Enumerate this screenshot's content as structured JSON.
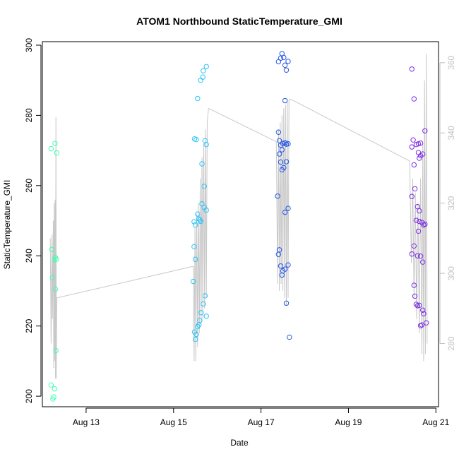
{
  "chart_data": {
    "type": "scatter",
    "title": "ATOM1 Northbound StaticTemperature_GMI",
    "xlabel": "Date",
    "ylabel": "StaticTemperature_GMI",
    "x_ticks": [
      {
        "x": 13,
        "label": "Aug 13"
      },
      {
        "x": 15,
        "label": "Aug 15"
      },
      {
        "x": 17,
        "label": "Aug 17"
      },
      {
        "x": 19,
        "label": "Aug 19"
      },
      {
        "x": 21,
        "label": "Aug 21"
      }
    ],
    "xlim": [
      12.0,
      21.06
    ],
    "ylim": [
      197.0,
      301.0
    ],
    "y_ticks": [
      200,
      220,
      240,
      260,
      280,
      300
    ],
    "y2lim": [
      262.0,
      366.0
    ],
    "y2_ticks": [
      280,
      300,
      320,
      340,
      360
    ],
    "grid": false,
    "legend": "none",
    "line_color": "#c8c8c8",
    "series": [
      {
        "color": "#3fffb0",
        "points": [
          [
            12.2,
            270.5
          ],
          [
            12.22,
            241.8
          ],
          [
            12.23,
            233.8
          ],
          [
            12.2,
            203.2
          ],
          [
            12.24,
            199.2
          ],
          [
            12.26,
            199.8
          ],
          [
            12.28,
            202.1
          ],
          [
            12.27,
            238.9
          ],
          [
            12.3,
            239.5
          ],
          [
            12.32,
            239.0
          ],
          [
            12.29,
            272.0
          ],
          [
            12.33,
            269.3
          ],
          [
            12.3,
            230.5
          ],
          [
            12.31,
            213.0
          ]
        ],
        "line": [
          [
            12.18,
            245.0
          ],
          [
            12.2,
            215.0
          ],
          [
            12.22,
            246.0
          ],
          [
            12.23,
            222.0
          ],
          [
            12.25,
            250.0
          ],
          [
            12.26,
            208.0
          ],
          [
            12.27,
            255.0
          ],
          [
            12.28,
            210.0
          ],
          [
            12.29,
            256.0
          ],
          [
            12.3,
            205.0
          ],
          [
            12.31,
            279.5
          ],
          [
            12.32,
            205.0
          ],
          [
            12.33,
            228.0
          ]
        ]
      },
      {
        "color": "#29c3f6",
        "points": [
          [
            15.45,
            232.7
          ],
          [
            15.48,
            218.3
          ],
          [
            15.5,
            216.2
          ],
          [
            15.52,
            217.6
          ],
          [
            15.55,
            219.8
          ],
          [
            15.58,
            220.3
          ],
          [
            15.6,
            221.6
          ],
          [
            15.63,
            223.8
          ],
          [
            15.68,
            226.3
          ],
          [
            15.72,
            228.6
          ],
          [
            15.75,
            222.8
          ],
          [
            15.47,
            242.6
          ],
          [
            15.5,
            239.0
          ],
          [
            15.47,
            249.7
          ],
          [
            15.5,
            248.8
          ],
          [
            15.55,
            251.9
          ],
          [
            15.6,
            250.2
          ],
          [
            15.65,
            254.8
          ],
          [
            15.7,
            253.8
          ],
          [
            15.75,
            253.0
          ],
          [
            15.58,
            250.5
          ],
          [
            15.62,
            249.8
          ],
          [
            15.65,
            266.2
          ],
          [
            15.7,
            259.8
          ],
          [
            15.72,
            272.8
          ],
          [
            15.75,
            271.7
          ],
          [
            15.48,
            273.3
          ],
          [
            15.52,
            273.1
          ],
          [
            15.55,
            284.8
          ],
          [
            15.62,
            290.0
          ],
          [
            15.67,
            290.9
          ],
          [
            15.68,
            292.7
          ],
          [
            15.75,
            293.9
          ]
        ],
        "line": [
          [
            15.45,
            237.0
          ],
          [
            15.47,
            210.0
          ],
          [
            15.49,
            248.0
          ],
          [
            15.51,
            210.0
          ],
          [
            15.53,
            252.0
          ],
          [
            15.55,
            214.0
          ],
          [
            15.57,
            255.0
          ],
          [
            15.59,
            218.0
          ],
          [
            15.61,
            262.0
          ],
          [
            15.63,
            220.0
          ],
          [
            15.65,
            268.0
          ],
          [
            15.67,
            222.0
          ],
          [
            15.69,
            272.0
          ],
          [
            15.71,
            225.0
          ],
          [
            15.73,
            276.0
          ],
          [
            15.75,
            228.0
          ],
          [
            15.77,
            278.0
          ],
          [
            15.8,
            282.0
          ]
        ]
      },
      {
        "color": "#2456e6",
        "points": [
          [
            17.38,
            257.0
          ],
          [
            17.4,
            240.4
          ],
          [
            17.42,
            241.7
          ],
          [
            17.45,
            237.1
          ],
          [
            17.48,
            234.5
          ],
          [
            17.5,
            235.7
          ],
          [
            17.55,
            236.2
          ],
          [
            17.58,
            226.5
          ],
          [
            17.62,
            237.4
          ],
          [
            17.65,
            216.8
          ],
          [
            17.4,
            275.2
          ],
          [
            17.42,
            272.8
          ],
          [
            17.45,
            271.5
          ],
          [
            17.48,
            270.2
          ],
          [
            17.5,
            272.0
          ],
          [
            17.55,
            272.2
          ],
          [
            17.58,
            271.8
          ],
          [
            17.62,
            271.9
          ],
          [
            17.42,
            269.0
          ],
          [
            17.45,
            266.7
          ],
          [
            17.48,
            264.5
          ],
          [
            17.52,
            265.1
          ],
          [
            17.58,
            266.8
          ],
          [
            17.55,
            252.4
          ],
          [
            17.62,
            253.5
          ],
          [
            17.4,
            295.3
          ],
          [
            17.45,
            296.3
          ],
          [
            17.48,
            297.6
          ],
          [
            17.52,
            296.5
          ],
          [
            17.55,
            294.3
          ],
          [
            17.58,
            292.9
          ],
          [
            17.62,
            295.4
          ],
          [
            17.55,
            284.2
          ]
        ],
        "line": [
          [
            17.35,
            272.5
          ],
          [
            17.38,
            232.0
          ],
          [
            17.4,
            276.0
          ],
          [
            17.42,
            230.0
          ],
          [
            17.44,
            278.0
          ],
          [
            17.46,
            232.0
          ],
          [
            17.48,
            280.0
          ],
          [
            17.5,
            230.0
          ],
          [
            17.52,
            282.0
          ],
          [
            17.54,
            228.0
          ],
          [
            17.56,
            283.0
          ],
          [
            17.58,
            226.0
          ],
          [
            17.6,
            284.0
          ],
          [
            17.62,
            228.0
          ],
          [
            17.64,
            284.5
          ],
          [
            17.7,
            284.5
          ]
        ]
      },
      {
        "color": "#7b2be3",
        "points": [
          [
            20.45,
            293.2
          ],
          [
            20.5,
            284.7
          ],
          [
            20.45,
            271.0
          ],
          [
            20.48,
            273.0
          ],
          [
            20.55,
            271.7
          ],
          [
            20.6,
            271.9
          ],
          [
            20.65,
            272.1
          ],
          [
            20.75,
            275.6
          ],
          [
            20.5,
            265.9
          ],
          [
            20.52,
            259.1
          ],
          [
            20.45,
            256.9
          ],
          [
            20.58,
            254.0
          ],
          [
            20.62,
            252.8
          ],
          [
            20.68,
            249.5
          ],
          [
            20.72,
            248.8
          ],
          [
            20.75,
            249.0
          ],
          [
            20.62,
            267.8
          ],
          [
            20.65,
            268.5
          ],
          [
            20.7,
            269.0
          ],
          [
            20.6,
            269.4
          ],
          [
            20.55,
            250.1
          ],
          [
            20.6,
            247.0
          ],
          [
            20.62,
            249.8
          ],
          [
            20.5,
            242.8
          ],
          [
            20.45,
            240.5
          ],
          [
            20.58,
            240.0
          ],
          [
            20.65,
            239.9
          ],
          [
            20.7,
            238.2
          ],
          [
            20.5,
            231.6
          ],
          [
            20.52,
            228.5
          ],
          [
            20.55,
            226.2
          ],
          [
            20.58,
            225.8
          ],
          [
            20.62,
            225.9
          ],
          [
            20.7,
            224.5
          ],
          [
            20.72,
            223.5
          ],
          [
            20.78,
            220.9
          ],
          [
            20.65,
            220.1
          ],
          [
            20.68,
            220.3
          ]
        ],
        "line": [
          [
            20.4,
            267.0
          ],
          [
            20.44,
            238.0
          ],
          [
            20.47,
            262.0
          ],
          [
            20.5,
            228.0
          ],
          [
            20.53,
            258.0
          ],
          [
            20.56,
            222.0
          ],
          [
            20.59,
            255.0
          ],
          [
            20.62,
            218.0
          ],
          [
            20.65,
            262.0
          ],
          [
            20.68,
            212.0
          ],
          [
            20.7,
            272.0
          ],
          [
            20.72,
            210.0
          ],
          [
            20.74,
            290.0
          ],
          [
            20.76,
            212.0
          ],
          [
            20.78,
            297.5
          ],
          [
            20.8,
            215.0
          ]
        ]
      }
    ],
    "connectors": [
      [
        [
          12.33,
          228.0
        ],
        [
          15.45,
          237.0
        ]
      ],
      [
        [
          15.8,
          282.0
        ],
        [
          17.35,
          272.5
        ]
      ],
      [
        [
          17.7,
          284.5
        ],
        [
          20.4,
          267.0
        ]
      ]
    ]
  }
}
